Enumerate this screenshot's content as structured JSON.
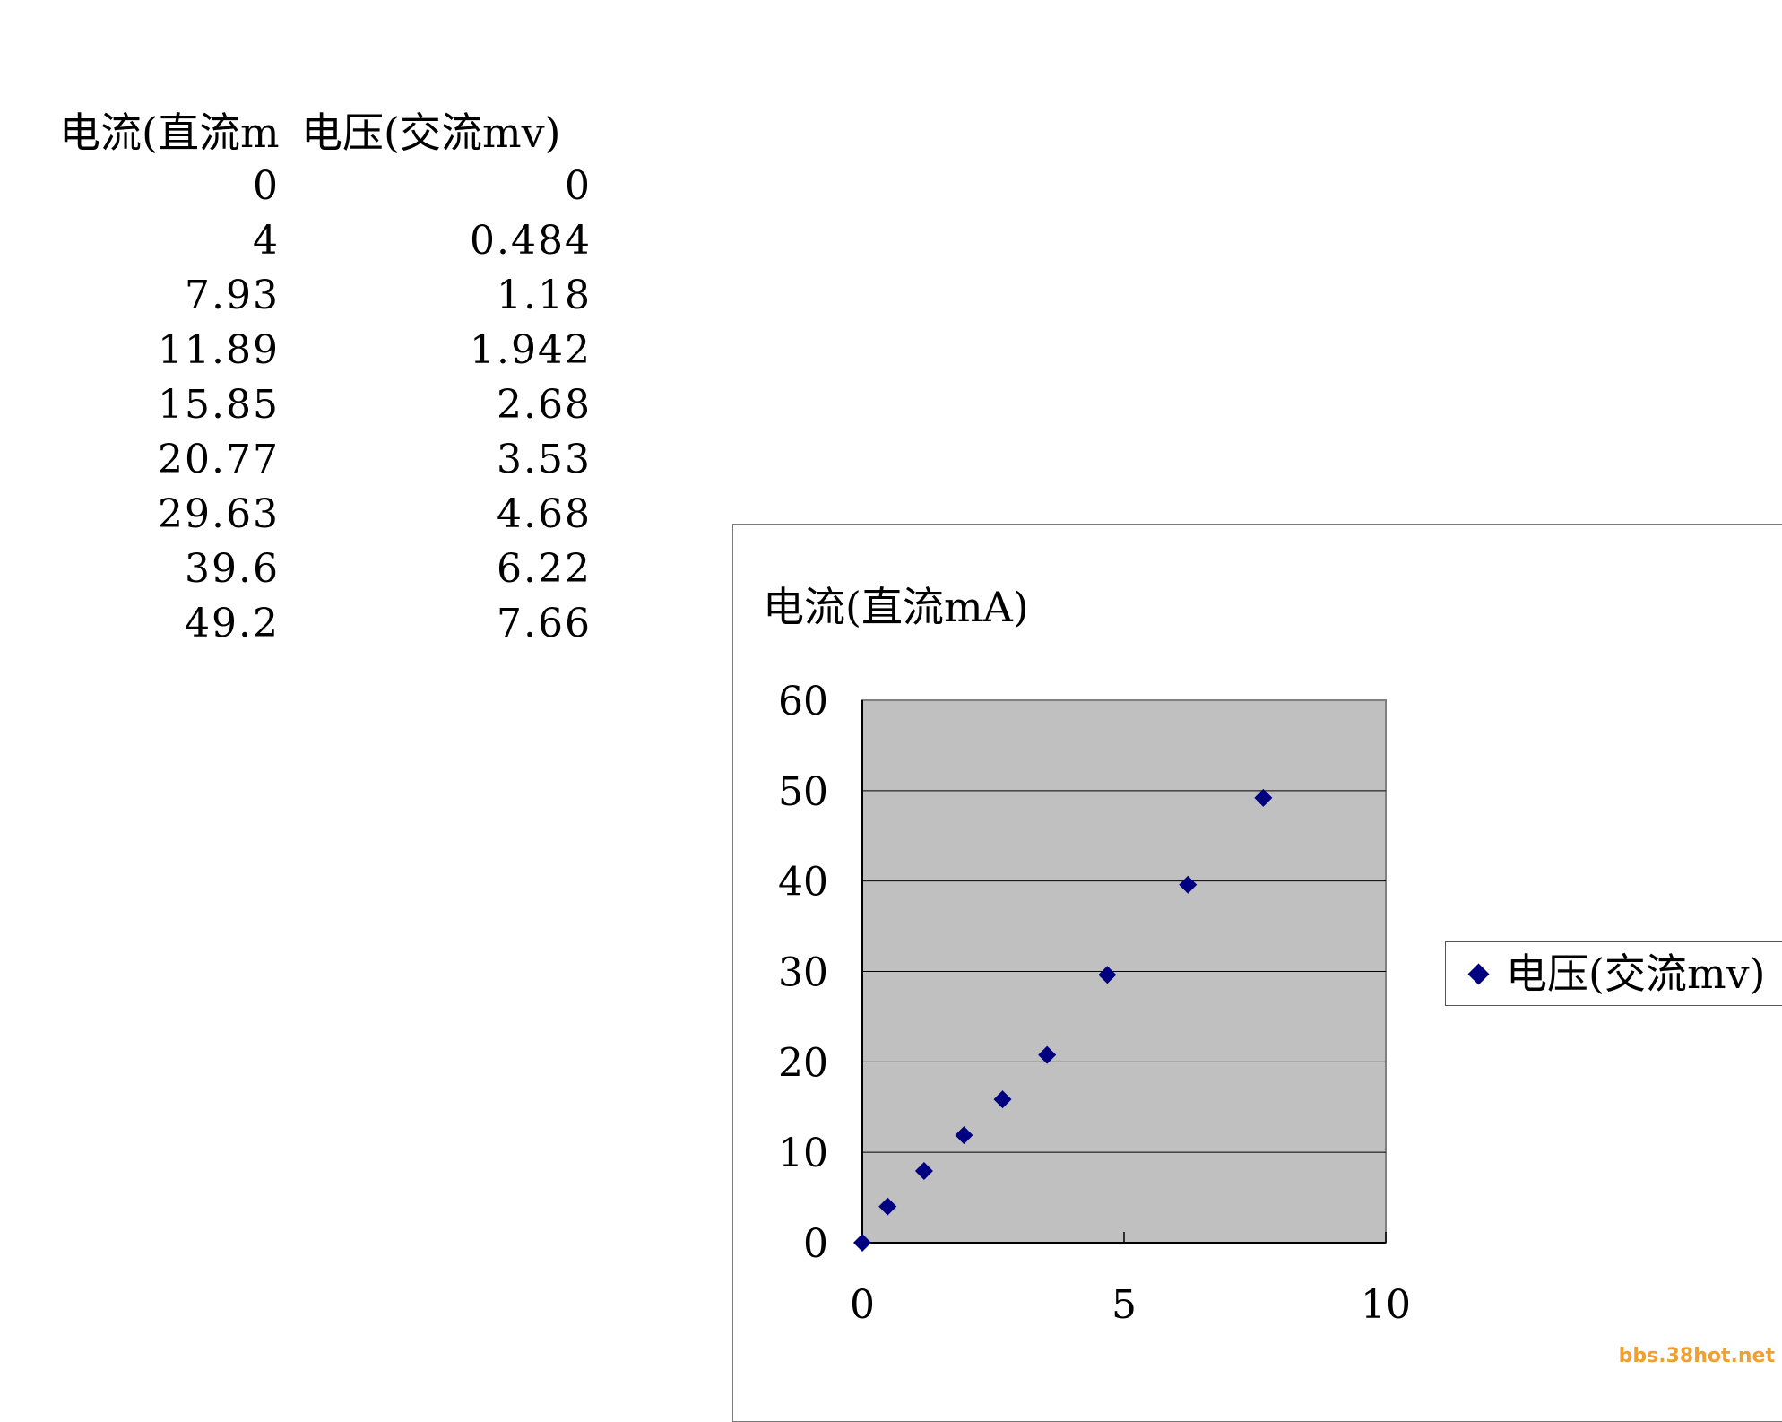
{
  "table": {
    "headers": [
      "电流(直流m",
      "电压(交流mv)"
    ],
    "rows": [
      [
        "0",
        "0"
      ],
      [
        "4",
        "0.484"
      ],
      [
        "7.93",
        "1.18"
      ],
      [
        "11.89",
        "1.942"
      ],
      [
        "15.85",
        "2.68"
      ],
      [
        "20.77",
        "3.53"
      ],
      [
        "29.63",
        "4.68"
      ],
      [
        "39.6",
        "6.22"
      ],
      [
        "49.2",
        "7.66"
      ]
    ]
  },
  "chart_data": {
    "type": "scatter",
    "title": "电流(直流mA)",
    "xlabel": "",
    "ylabel": "",
    "xlim": [
      0,
      10
    ],
    "ylim": [
      0,
      60
    ],
    "x_ticks": [
      "0",
      "5",
      "10"
    ],
    "y_ticks": [
      "0",
      "10",
      "20",
      "30",
      "40",
      "50",
      "60"
    ],
    "grid": "horizontal",
    "legend": "right",
    "series": [
      {
        "name": "电压(交流mv)",
        "color": "#000080",
        "marker": "diamond",
        "x": [
          0,
          0.484,
          1.18,
          1.942,
          2.68,
          3.53,
          4.68,
          6.22,
          7.66
        ],
        "y": [
          0,
          4,
          7.93,
          11.89,
          15.85,
          20.77,
          29.63,
          39.6,
          49.2
        ]
      }
    ],
    "plot_background": "#c0c0c0"
  },
  "watermark": "bbs.38hot.net"
}
